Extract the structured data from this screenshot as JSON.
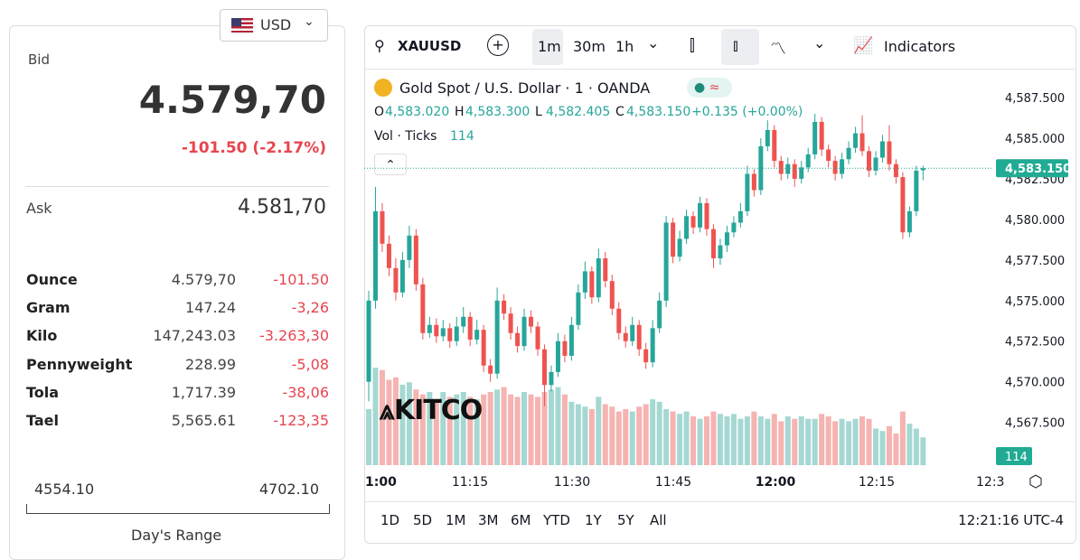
{
  "currency": "USD",
  "quote": {
    "bid_label": "Bid",
    "bid": "4.579,70",
    "change": "-101.50 (-2.17%)",
    "ask_label": "Ask",
    "ask": "4.581,70"
  },
  "units": [
    [
      "Ounce",
      "4.579,70",
      "-101.50"
    ],
    [
      "Gram",
      "147.24",
      "-3,26"
    ],
    [
      "Kilo",
      "147,243.03",
      "-3.263,30"
    ],
    [
      "Pennyweight",
      "228.99",
      "-5,08"
    ],
    [
      "Tola",
      "1,717.39",
      "-38,06"
    ],
    [
      "Tael",
      "5,565.61",
      "-123,35"
    ]
  ],
  "range": {
    "low": "4554.10",
    "high": "4702.10",
    "label": "Day's Range"
  },
  "toolbar": {
    "symbol": "XAUUSD",
    "intervals": [
      "1m",
      "30m",
      "1h"
    ],
    "indicators": "Indicators"
  },
  "chart_data": {
    "type": "candlestick",
    "title": "Gold Spot / U.S. Dollar · 1 · OANDA",
    "ohlc_labels": [
      "O",
      "H",
      "L",
      "C"
    ],
    "ohlc_values": [
      "4,583.020",
      "4,583.300",
      "4,582.405",
      "4,583.150"
    ],
    "change": "+0.135 (+0.00%)",
    "volume_label": "Vol · Ticks",
    "colors": {
      "up": "#26a69a",
      "down": "#ef5350",
      "vol_up": "#a5d8d2",
      "vol_down": "#f5b3b1"
    },
    "ylim": [
      4564.2,
      4589.0
    ],
    "yticks": [
      {
        "value": 4567.5,
        "label": "4,567.500"
      },
      {
        "value": 4570,
        "label": "4,570.000"
      },
      {
        "value": 4572.5,
        "label": "4,572.500"
      },
      {
        "value": 4575,
        "label": "4,575.000"
      },
      {
        "value": 4577.5,
        "label": "4,577.500"
      },
      {
        "value": 4580,
        "label": "4,580.000"
      },
      {
        "value": 4582.5,
        "label": "4,582.500"
      },
      {
        "value": 4585,
        "label": "4,585.000"
      },
      {
        "value": 4587.5,
        "label": "4,587.500"
      }
    ],
    "last": {
      "value": 4583.15,
      "label": "4,583.150"
    },
    "xtick_labels": [
      "1:00",
      "11:15",
      "11:30",
      "11:45",
      "12:00",
      "12:15",
      "12:3"
    ],
    "candles": [
      [
        4570.0,
        4575.6,
        4568.8,
        4575.0
      ],
      [
        4575.0,
        4582.0,
        4574.5,
        4580.5
      ],
      [
        4580.5,
        4581.0,
        4578.0,
        4578.5
      ],
      [
        4578.5,
        4579.0,
        4576.5,
        4577.0
      ],
      [
        4577.0,
        4577.6,
        4575.0,
        4575.5
      ],
      [
        4575.5,
        4578.0,
        4575.2,
        4577.5
      ],
      [
        4577.5,
        4579.6,
        4577.0,
        4579.0
      ],
      [
        4579.0,
        4579.4,
        4575.6,
        4576.0
      ],
      [
        4576.0,
        4576.4,
        4572.6,
        4573.0
      ],
      [
        4573.0,
        4574.0,
        4572.7,
        4573.5
      ],
      [
        4573.5,
        4573.9,
        4572.4,
        4572.8
      ],
      [
        4572.8,
        4573.8,
        4572.5,
        4573.3
      ],
      [
        4573.3,
        4573.6,
        4572.1,
        4572.5
      ],
      [
        4572.5,
        4574.0,
        4572.2,
        4573.4
      ],
      [
        4573.4,
        4574.6,
        4573.0,
        4574.0
      ],
      [
        4574.0,
        4574.3,
        4572.2,
        4572.6
      ],
      [
        4572.6,
        4573.8,
        4572.3,
        4573.2
      ],
      [
        4573.2,
        4573.5,
        4570.6,
        4571.0
      ],
      [
        4571.0,
        4571.4,
        4570.0,
        4570.5
      ],
      [
        4570.5,
        4575.8,
        4570.2,
        4575.0
      ],
      [
        4575.0,
        4575.4,
        4573.8,
        4574.2
      ],
      [
        4574.2,
        4574.6,
        4572.6,
        4573.0
      ],
      [
        4573.0,
        4573.4,
        4571.8,
        4572.2
      ],
      [
        4572.2,
        4574.5,
        4571.9,
        4574.0
      ],
      [
        4574.0,
        4574.4,
        4573.0,
        4573.4
      ],
      [
        4573.4,
        4573.7,
        4571.6,
        4572.0
      ],
      [
        4572.0,
        4572.3,
        4568.5,
        4569.8
      ],
      [
        4569.8,
        4571.0,
        4569.4,
        4570.6
      ],
      [
        4570.6,
        4573.0,
        4570.3,
        4572.5
      ],
      [
        4572.5,
        4572.9,
        4571.2,
        4571.6
      ],
      [
        4571.6,
        4574.0,
        4571.3,
        4573.5
      ],
      [
        4573.5,
        4576.0,
        4573.2,
        4575.5
      ],
      [
        4575.5,
        4577.4,
        4575.1,
        4576.8
      ],
      [
        4576.8,
        4577.1,
        4574.8,
        4575.2
      ],
      [
        4575.2,
        4578.2,
        4574.9,
        4577.6
      ],
      [
        4577.6,
        4578.0,
        4575.8,
        4576.2
      ],
      [
        4576.2,
        4576.6,
        4574.1,
        4574.5
      ],
      [
        4574.5,
        4574.9,
        4572.6,
        4573.0
      ],
      [
        4573.0,
        4573.4,
        4572.1,
        4572.5
      ],
      [
        4572.5,
        4574.0,
        4572.2,
        4573.5
      ],
      [
        4573.5,
        4573.8,
        4571.6,
        4572.0
      ],
      [
        4572.0,
        4572.4,
        4570.8,
        4571.2
      ],
      [
        4571.2,
        4573.8,
        4570.9,
        4573.3
      ],
      [
        4573.3,
        4575.5,
        4573.0,
        4575.0
      ],
      [
        4575.0,
        4580.2,
        4574.6,
        4579.8
      ],
      [
        4579.8,
        4580.1,
        4577.3,
        4577.7
      ],
      [
        4577.7,
        4579.3,
        4577.4,
        4578.8
      ],
      [
        4578.8,
        4580.6,
        4578.5,
        4580.2
      ],
      [
        4580.2,
        4580.5,
        4579.1,
        4579.5
      ],
      [
        4579.5,
        4581.4,
        4579.2,
        4581.0
      ],
      [
        4581.0,
        4581.3,
        4579.0,
        4579.4
      ],
      [
        4579.4,
        4579.7,
        4577.0,
        4577.6
      ],
      [
        4577.6,
        4578.8,
        4577.2,
        4578.4
      ],
      [
        4578.4,
        4579.6,
        4578.0,
        4579.2
      ],
      [
        4579.2,
        4580.2,
        4578.9,
        4579.8
      ],
      [
        4579.8,
        4581.0,
        4579.5,
        4580.5
      ],
      [
        4580.5,
        4583.3,
        4580.2,
        4582.8
      ],
      [
        4582.8,
        4583.1,
        4581.4,
        4581.8
      ],
      [
        4581.8,
        4585.0,
        4581.5,
        4584.5
      ],
      [
        4584.5,
        4586.1,
        4584.2,
        4585.5
      ],
      [
        4585.5,
        4585.8,
        4583.2,
        4583.6
      ],
      [
        4583.6,
        4583.9,
        4582.4,
        4582.8
      ],
      [
        4582.8,
        4583.8,
        4582.5,
        4583.4
      ],
      [
        4583.4,
        4583.7,
        4582.0,
        4582.5
      ],
      [
        4582.5,
        4583.6,
        4582.2,
        4583.2
      ],
      [
        4583.2,
        4584.4,
        4582.9,
        4584.0
      ],
      [
        4584.0,
        4586.5,
        4583.7,
        4586.0
      ],
      [
        4586.0,
        4586.3,
        4583.9,
        4584.3
      ],
      [
        4584.3,
        4584.6,
        4583.2,
        4583.6
      ],
      [
        4583.6,
        4583.9,
        4582.4,
        4582.8
      ],
      [
        4582.8,
        4584.1,
        4582.5,
        4583.7
      ],
      [
        4583.7,
        4584.8,
        4583.4,
        4584.4
      ],
      [
        4584.4,
        4585.7,
        4584.1,
        4585.3
      ],
      [
        4585.3,
        4586.4,
        4583.9,
        4584.2
      ],
      [
        4584.2,
        4584.5,
        4582.6,
        4583.0
      ],
      [
        4583.0,
        4584.2,
        4582.7,
        4583.8
      ],
      [
        4583.8,
        4585.2,
        4583.5,
        4584.8
      ],
      [
        4584.8,
        4585.8,
        4583.0,
        4583.4
      ],
      [
        4583.4,
        4583.7,
        4582.2,
        4582.6
      ],
      [
        4582.6,
        4582.9,
        4578.8,
        4579.2
      ],
      [
        4579.2,
        4580.8,
        4578.9,
        4580.5
      ],
      [
        4580.5,
        4583.3,
        4580.2,
        4583.0
      ],
      [
        4583.02,
        4583.3,
        4582.405,
        4583.15
      ]
    ],
    "volumes": [
      230,
      400,
      390,
      350,
      360,
      330,
      340,
      310,
      290,
      300,
      270,
      300,
      280,
      290,
      300,
      280,
      270,
      290,
      300,
      310,
      320,
      290,
      280,
      300,
      290,
      280,
      300,
      310,
      320,
      290,
      260,
      250,
      240,
      230,
      280,
      250,
      240,
      220,
      230,
      220,
      240,
      250,
      270,
      260,
      230,
      220,
      210,
      220,
      200,
      190,
      200,
      220,
      210,
      200,
      210,
      190,
      200,
      220,
      200,
      190,
      210,
      180,
      200,
      190,
      200,
      190,
      190,
      210,
      200,
      180,
      190,
      180,
      190,
      200,
      190,
      150,
      140,
      160,
      130,
      220,
      170,
      150,
      114
    ]
  },
  "logo": "KITCO",
  "ranges": [
    "1D",
    "5D",
    "1M",
    "3M",
    "6M",
    "YTD",
    "1Y",
    "5Y",
    "All"
  ],
  "clock": "12:21:16 UTC-4"
}
